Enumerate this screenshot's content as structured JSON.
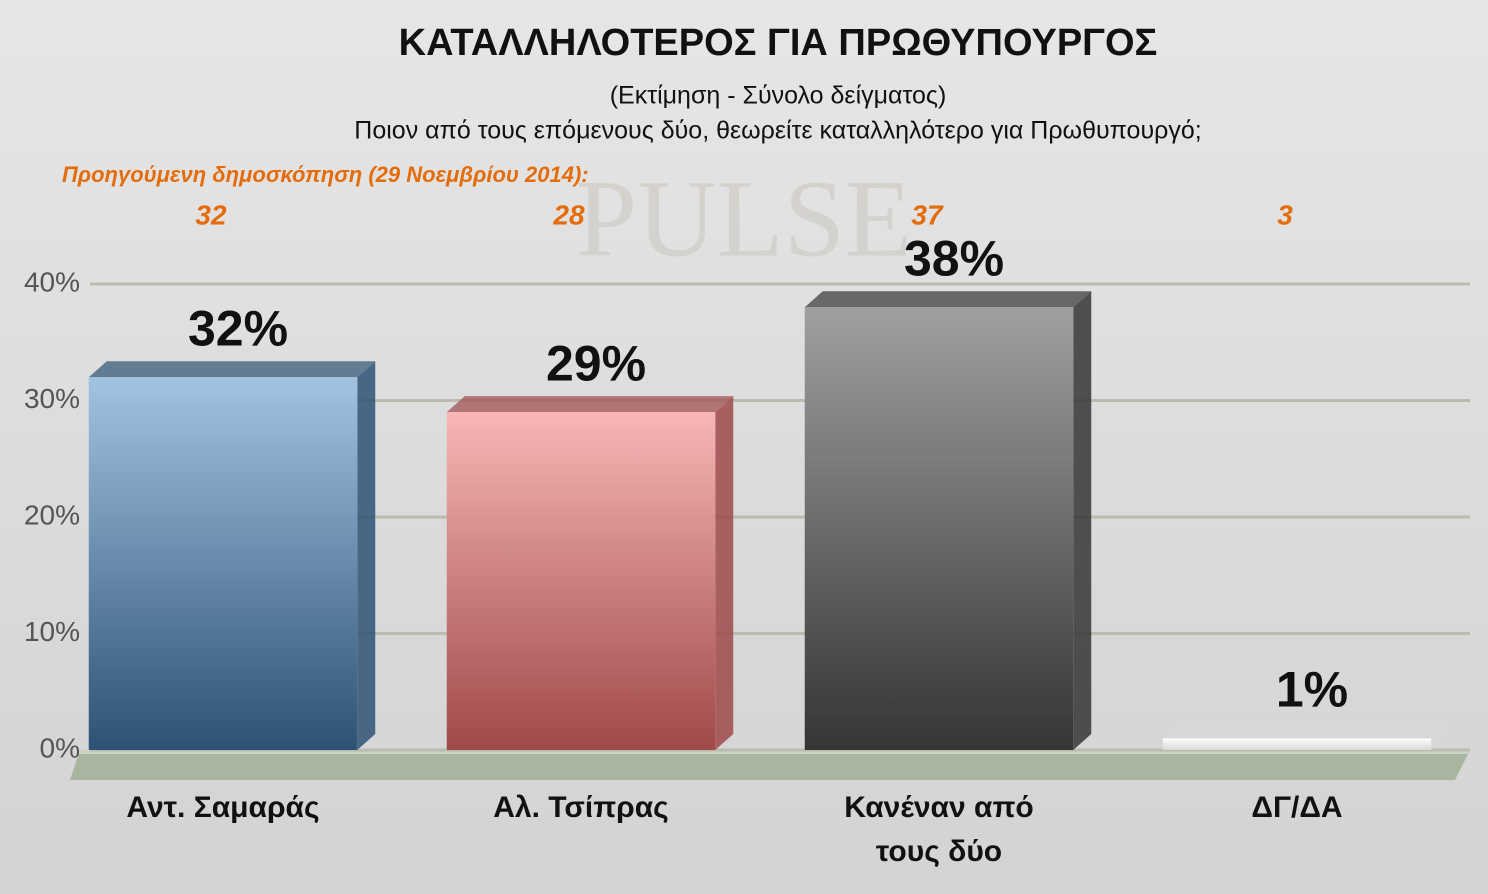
{
  "chart_data": {
    "type": "bar3d",
    "title": "ΚΑΤΑΛΛΗΛΟΤΕΡΟΣ ΓΙΑ ΠΡΩΘΥΠΟΥΡΓΟΣ",
    "subtitle": "(Εκτίμηση - Σύνολο δείγματος)",
    "question": "Ποιον από τους επόμενους δύο, θεωρείτε καταλληλότερο για Πρωθυπουργό;",
    "watermark": "PULSE",
    "previous": {
      "label": "Προηγούμενη δημοσκόπηση  (29 Νοεμβρίου 2014):",
      "values": [
        32,
        28,
        37,
        3
      ]
    },
    "categories": [
      "Αντ. Σαμαράς",
      "Αλ. Τσίπρας",
      "Κανέναν από τους δύο",
      "ΔΓ/ΔΑ"
    ],
    "values": [
      32,
      29,
      38,
      1
    ],
    "value_labels": [
      "32%",
      "29%",
      "38%",
      "1%"
    ],
    "colors": [
      [
        "#a3c3e3",
        "#2d5275"
      ],
      [
        "#f8b6b6",
        "#a0494a"
      ],
      [
        "#a0a0a0",
        "#353535"
      ],
      [
        "#ffffff",
        "#d8d8d8"
      ]
    ],
    "ylim": [
      0,
      40
    ],
    "yticks": [
      {
        "value": 0,
        "label": "0%"
      },
      {
        "value": 10,
        "label": "10%"
      },
      {
        "value": 20,
        "label": "20%"
      },
      {
        "value": 30,
        "label": "30%"
      },
      {
        "value": 40,
        "label": "40%"
      }
    ],
    "grid": true
  }
}
